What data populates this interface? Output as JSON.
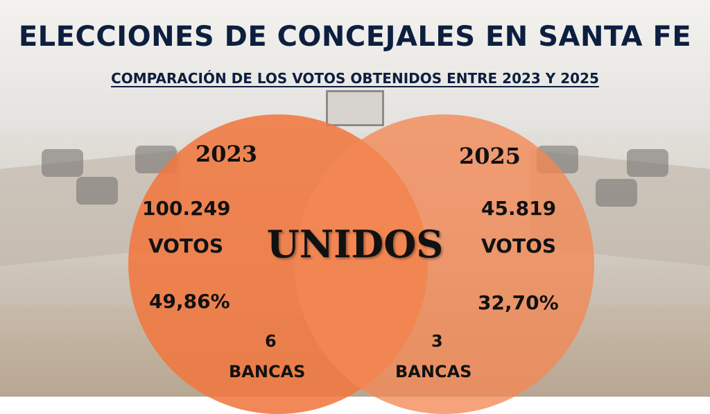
{
  "title": "ELECCIONES DE CONCEJALES EN SANTA FE",
  "subtitle": "COMPARACIÓN DE LOS VOTOS OBTENIDOS ENTRE 2023 Y 2025",
  "center_label": "UNIDOS",
  "colors": {
    "left_circle": "#F07840",
    "right_circle": "#F48854",
    "title": "#0D1F3F"
  },
  "left": {
    "year": "2023",
    "votes_number": "100.249",
    "votes_label": "VOTOS",
    "percent": "49,86%",
    "seats_number": "6",
    "seats_label": "BANCAS"
  },
  "right": {
    "year": "2025",
    "votes_number": "45.819",
    "votes_label": "VOTOS",
    "percent": "32,70%",
    "seats_number": "3",
    "seats_label": "BANCAS"
  }
}
